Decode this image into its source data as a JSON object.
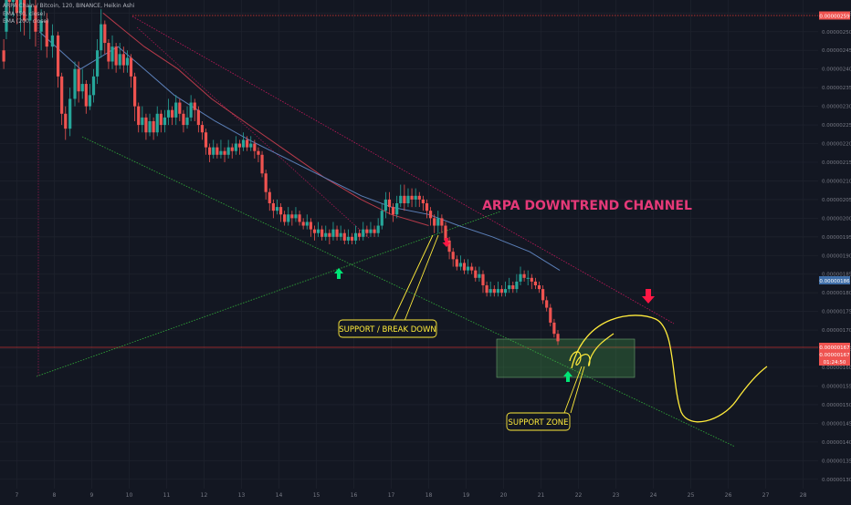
{
  "legend": {
    "symbol": "ARPA Chain / Bitcoin, 120, BINANCE, Heikin Ashi",
    "ema50": "EMA (50, close)",
    "ema200": "EMA (200, close)"
  },
  "colors": {
    "background": "#131722",
    "bull": "#26a69a",
    "bear": "#ef5350",
    "ema50": "#5b7fb8",
    "ema200": "#b73a4a",
    "channel_upper": "#c2185b",
    "support_green": "#2e9e37",
    "projection": "#ffeb3b",
    "title_text": "#e53978",
    "arrow_green": "#00e676",
    "arrow_red": "#ff1744",
    "price_tag": "#ef5350",
    "ema_tag": "#3f6ea8",
    "axis_text": "#787b86"
  },
  "chart_data": {
    "type": "candlestick",
    "style": "Heikin Ashi",
    "symbol": "ARPA Chain / Bitcoin",
    "interval": "120",
    "exchange": "BINANCE",
    "x_ticks": [
      "7",
      "8",
      "9",
      "10",
      "11",
      "12",
      "13",
      "14",
      "15",
      "16",
      "17",
      "18",
      "19",
      "20",
      "21",
      "22",
      "23",
      "24",
      "25",
      "26",
      "27",
      "28"
    ],
    "y_ticks": [
      "0.00000130",
      "0.00000135",
      "0.00000140",
      "0.00000145",
      "0.00000150",
      "0.00000155",
      "0.00000160",
      "0.00000165",
      "0.00000170",
      "0.00000175",
      "0.00000180",
      "0.00000185",
      "0.00000190",
      "0.00000195",
      "0.00000200",
      "0.00000205",
      "0.00000210",
      "0.00000215",
      "0.00000220",
      "0.00000225",
      "0.00000230",
      "0.00000235",
      "0.00000240",
      "0.00000245",
      "0.00000250",
      "0.00000255"
    ],
    "ylim": [
      1.275e-06,
      2.585e-06
    ],
    "xlim": [
      6.55,
      28.4
    ],
    "price_labels": {
      "high_line": "0.00000259",
      "current_1": "0.00000167",
      "current_2": "0.00000167",
      "countdown": "01:24:50",
      "ema": "0.00000186"
    },
    "levels": {
      "high": 2.59e-06,
      "current": 1.67e-06
    },
    "candles": [
      [
        6.65,
        2.45e-06,
        2.42e-06,
        2.48e-06,
        2.4e-06
      ],
      [
        6.72,
        2.5e-06,
        2.62e-06,
        2.65e-06,
        2.48e-06
      ],
      [
        6.8,
        2.62e-06,
        2.58e-06,
        2.66e-06,
        2.55e-06
      ],
      [
        6.9,
        2.58e-06,
        2.62e-06,
        2.65e-06,
        2.54e-06
      ],
      [
        7.0,
        2.62e-06,
        2.55e-06,
        2.64e-06,
        2.52e-06
      ],
      [
        7.1,
        2.55e-06,
        2.6e-06,
        2.63e-06,
        2.5e-06
      ],
      [
        7.2,
        2.6e-06,
        2.53e-06,
        2.62e-06,
        2.49e-06
      ],
      [
        7.35,
        2.53e-06,
        2.57e-06,
        2.6e-06,
        2.48e-06
      ],
      [
        7.5,
        2.57e-06,
        2.5e-06,
        2.59e-06,
        2.46e-06
      ],
      [
        7.65,
        2.5e-06,
        2.53e-06,
        2.56e-06,
        2.45e-06
      ],
      [
        7.8,
        2.53e-06,
        2.46e-06,
        2.55e-06,
        2.43e-06
      ],
      [
        7.95,
        2.46e-06,
        2.49e-06,
        2.52e-06,
        2.43e-06
      ],
      [
        8.1,
        2.49e-06,
        2.38e-06,
        2.5e-06,
        2.35e-06
      ],
      [
        8.2,
        2.38e-06,
        2.28e-06,
        2.39e-06,
        2.25e-06
      ],
      [
        8.3,
        2.28e-06,
        2.24e-06,
        2.3e-06,
        2.21e-06
      ],
      [
        8.42,
        2.24e-06,
        2.32e-06,
        2.35e-06,
        2.22e-06
      ],
      [
        8.55,
        2.32e-06,
        2.4e-06,
        2.42e-06,
        2.3e-06
      ],
      [
        8.65,
        2.4e-06,
        2.34e-06,
        2.42e-06,
        2.31e-06
      ],
      [
        8.75,
        2.34e-06,
        2.36e-06,
        2.4e-06,
        2.32e-06
      ],
      [
        8.85,
        2.36e-06,
        2.3e-06,
        2.37e-06,
        2.28e-06
      ],
      [
        8.95,
        2.3e-06,
        2.33e-06,
        2.36e-06,
        2.29e-06
      ],
      [
        9.05,
        2.33e-06,
        2.38e-06,
        2.4e-06,
        2.31e-06
      ],
      [
        9.15,
        2.38e-06,
        2.45e-06,
        2.48e-06,
        2.36e-06
      ],
      [
        9.25,
        2.45e-06,
        2.52e-06,
        2.56e-06,
        2.43e-06
      ],
      [
        9.35,
        2.52e-06,
        2.47e-06,
        2.53e-06,
        2.44e-06
      ],
      [
        9.45,
        2.47e-06,
        2.42e-06,
        2.48e-06,
        2.4e-06
      ],
      [
        9.55,
        2.42e-06,
        2.46e-06,
        2.49e-06,
        2.4e-06
      ],
      [
        9.65,
        2.46e-06,
        2.41e-06,
        2.47e-06,
        2.39e-06
      ],
      [
        9.75,
        2.41e-06,
        2.44e-06,
        2.47e-06,
        2.4e-06
      ],
      [
        9.85,
        2.44e-06,
        2.41e-06,
        2.46e-06,
        2.39e-06
      ],
      [
        9.95,
        2.41e-06,
        2.43e-06,
        2.45e-06,
        2.39e-06
      ],
      [
        10.05,
        2.43e-06,
        2.38e-06,
        2.44e-06,
        2.35e-06
      ],
      [
        10.15,
        2.38e-06,
        2.3e-06,
        2.39e-06,
        2.26e-06
      ],
      [
        10.25,
        2.3e-06,
        2.25e-06,
        2.31e-06,
        2.23e-06
      ],
      [
        10.35,
        2.25e-06,
        2.27e-06,
        2.3e-06,
        2.23e-06
      ],
      [
        10.45,
        2.27e-06,
        2.23e-06,
        2.28e-06,
        2.21e-06
      ],
      [
        10.55,
        2.23e-06,
        2.26e-06,
        2.28e-06,
        2.22e-06
      ],
      [
        10.65,
        2.26e-06,
        2.23e-06,
        2.27e-06,
        2.21e-06
      ],
      [
        10.75,
        2.23e-06,
        2.28e-06,
        2.3e-06,
        2.22e-06
      ],
      [
        10.85,
        2.28e-06,
        2.25e-06,
        2.29e-06,
        2.23e-06
      ],
      [
        10.95,
        2.25e-06,
        2.27e-06,
        2.29e-06,
        2.23e-06
      ],
      [
        11.05,
        2.27e-06,
        2.29e-06,
        2.32e-06,
        2.25e-06
      ],
      [
        11.15,
        2.29e-06,
        2.27e-06,
        2.3e-06,
        2.25e-06
      ],
      [
        11.25,
        2.27e-06,
        2.31e-06,
        2.33e-06,
        2.25e-06
      ],
      [
        11.35,
        2.31e-06,
        2.28e-06,
        2.32e-06,
        2.26e-06
      ],
      [
        11.45,
        2.28e-06,
        2.25e-06,
        2.29e-06,
        2.23e-06
      ],
      [
        11.55,
        2.25e-06,
        2.27e-06,
        2.3e-06,
        2.24e-06
      ],
      [
        11.65,
        2.27e-06,
        2.31e-06,
        2.33e-06,
        2.26e-06
      ],
      [
        11.75,
        2.31e-06,
        2.29e-06,
        2.32e-06,
        2.26e-06
      ],
      [
        11.85,
        2.29e-06,
        2.25e-06,
        2.3e-06,
        2.23e-06
      ],
      [
        11.95,
        2.25e-06,
        2.23e-06,
        2.26e-06,
        2.21e-06
      ],
      [
        12.05,
        2.23e-06,
        2.19e-06,
        2.24e-06,
        2.17e-06
      ],
      [
        12.15,
        2.19e-06,
        2.17e-06,
        2.2e-06,
        2.15e-06
      ],
      [
        12.25,
        2.17e-06,
        2.19e-06,
        2.21e-06,
        2.16e-06
      ],
      [
        12.35,
        2.19e-06,
        2.17e-06,
        2.2e-06,
        2.16e-06
      ],
      [
        12.45,
        2.17e-06,
        2.18e-06,
        2.21e-06,
        2.16e-06
      ],
      [
        12.55,
        2.18e-06,
        2.17e-06,
        2.19e-06,
        2.15e-06
      ],
      [
        12.65,
        2.17e-06,
        2.19e-06,
        2.21e-06,
        2.16e-06
      ],
      [
        12.75,
        2.19e-06,
        2.18e-06,
        2.2e-06,
        2.16e-06
      ],
      [
        12.85,
        2.18e-06,
        2.2e-06,
        2.22e-06,
        2.17e-06
      ],
      [
        12.95,
        2.2e-06,
        2.19e-06,
        2.21e-06,
        2.17e-06
      ],
      [
        13.05,
        2.19e-06,
        2.21e-06,
        2.23e-06,
        2.18e-06
      ],
      [
        13.15,
        2.21e-06,
        2.19e-06,
        2.22e-06,
        2.18e-06
      ],
      [
        13.25,
        2.19e-06,
        2.2e-06,
        2.22e-06,
        2.18e-06
      ],
      [
        13.35,
        2.2e-06,
        2.18e-06,
        2.21e-06,
        2.16e-06
      ],
      [
        13.45,
        2.18e-06,
        2.17e-06,
        2.19e-06,
        2.15e-06
      ],
      [
        13.55,
        2.17e-06,
        2.12e-06,
        2.18e-06,
        2.11e-06
      ],
      [
        13.65,
        2.12e-06,
        2.07e-06,
        2.13e-06,
        2.05e-06
      ],
      [
        13.75,
        2.07e-06,
        2.04e-06,
        2.08e-06,
        2.02e-06
      ],
      [
        13.85,
        2.04e-06,
        2.02e-06,
        2.05e-06,
        2e-06
      ],
      [
        13.95,
        2.02e-06,
        2.03e-06,
        2.05e-06,
        2.01e-06
      ],
      [
        14.05,
        2.03e-06,
        2.01e-06,
        2.04e-06,
        1.99e-06
      ],
      [
        14.15,
        2.01e-06,
        1.99e-06,
        2.02e-06,
        1.98e-06
      ],
      [
        14.25,
        1.99e-06,
        2.01e-06,
        2.03e-06,
        1.98e-06
      ],
      [
        14.35,
        2.01e-06,
        2e-06,
        2.02e-06,
        1.98e-06
      ],
      [
        14.45,
        2e-06,
        2.01e-06,
        2.03e-06,
        1.99e-06
      ],
      [
        14.55,
        2.01e-06,
        1.99e-06,
        2.02e-06,
        1.98e-06
      ],
      [
        14.65,
        1.99e-06,
        1.98e-06,
        2e-06,
        1.97e-06
      ],
      [
        14.75,
        1.98e-06,
        1.99e-06,
        2.01e-06,
        1.97e-06
      ],
      [
        14.85,
        1.99e-06,
        1.97e-06,
        2e-06,
        1.95e-06
      ],
      [
        14.95,
        1.97e-06,
        1.96e-06,
        1.98e-06,
        1.94e-06
      ],
      [
        15.05,
        1.96e-06,
        1.97e-06,
        1.99e-06,
        1.95e-06
      ],
      [
        15.15,
        1.97e-06,
        1.95e-06,
        1.98e-06,
        1.94e-06
      ],
      [
        15.25,
        1.95e-06,
        1.96e-06,
        1.98e-06,
        1.94e-06
      ],
      [
        15.35,
        1.96e-06,
        1.95e-06,
        1.97e-06,
        1.93e-06
      ],
      [
        15.45,
        1.95e-06,
        1.97e-06,
        1.99e-06,
        1.94e-06
      ],
      [
        15.55,
        1.97e-06,
        1.95e-06,
        1.98e-06,
        1.94e-06
      ],
      [
        15.65,
        1.95e-06,
        1.96e-06,
        1.98e-06,
        1.94e-06
      ],
      [
        15.75,
        1.96e-06,
        1.94e-06,
        1.97e-06,
        1.93e-06
      ],
      [
        15.85,
        1.94e-06,
        1.95e-06,
        1.97e-06,
        1.93e-06
      ],
      [
        15.95,
        1.95e-06,
        1.94e-06,
        1.96e-06,
        1.93e-06
      ],
      [
        16.05,
        1.94e-06,
        1.96e-06,
        1.98e-06,
        1.93e-06
      ],
      [
        16.15,
        1.96e-06,
        1.95e-06,
        1.97e-06,
        1.94e-06
      ],
      [
        16.25,
        1.95e-06,
        1.97e-06,
        1.99e-06,
        1.94e-06
      ],
      [
        16.35,
        1.97e-06,
        1.96e-06,
        1.98e-06,
        1.95e-06
      ],
      [
        16.45,
        1.96e-06,
        1.97e-06,
        1.99e-06,
        1.95e-06
      ],
      [
        16.55,
        1.97e-06,
        1.96e-06,
        1.98e-06,
        1.95e-06
      ],
      [
        16.65,
        1.96e-06,
        1.98e-06,
        2e-06,
        1.95e-06
      ],
      [
        16.75,
        1.98e-06,
        2.02e-06,
        2.04e-06,
        1.97e-06
      ],
      [
        16.85,
        2.02e-06,
        2.05e-06,
        2.07e-06,
        2e-06
      ],
      [
        16.95,
        2.05e-06,
        2.03e-06,
        2.07e-06,
        2.01e-06
      ],
      [
        17.05,
        2.03e-06,
        2.01e-06,
        2.04e-06,
        1.99e-06
      ],
      [
        17.15,
        2.01e-06,
        2.04e-06,
        2.06e-06,
        2e-06
      ],
      [
        17.25,
        2.04e-06,
        2.06e-06,
        2.09e-06,
        2.03e-06
      ],
      [
        17.35,
        2.06e-06,
        2.04e-06,
        2.09e-06,
        2.02e-06
      ],
      [
        17.45,
        2.04e-06,
        2.06e-06,
        2.08e-06,
        2.03e-06
      ],
      [
        17.55,
        2.06e-06,
        2.05e-06,
        2.08e-06,
        2.03e-06
      ],
      [
        17.65,
        2.05e-06,
        2.06e-06,
        2.08e-06,
        2.03e-06
      ],
      [
        17.75,
        2.06e-06,
        2.05e-06,
        2.07e-06,
        2.03e-06
      ],
      [
        17.85,
        2.05e-06,
        2.04e-06,
        2.06e-06,
        2.02e-06
      ],
      [
        17.95,
        2.04e-06,
        2.02e-06,
        2.05e-06,
        2e-06
      ],
      [
        18.05,
        2.02e-06,
        2e-06,
        2.03e-06,
        1.98e-06
      ],
      [
        18.15,
        2e-06,
        1.98e-06,
        2.01e-06,
        1.96e-06
      ],
      [
        18.25,
        1.98e-06,
        2e-06,
        2.02e-06,
        1.96e-06
      ],
      [
        18.35,
        2e-06,
        1.98e-06,
        2.01e-06,
        1.96e-06
      ],
      [
        18.45,
        1.98e-06,
        1.94e-06,
        1.99e-06,
        1.93e-06
      ],
      [
        18.55,
        1.94e-06,
        1.91e-06,
        1.95e-06,
        1.89e-06
      ],
      [
        18.65,
        1.91e-06,
        1.89e-06,
        1.92e-06,
        1.87e-06
      ],
      [
        18.75,
        1.89e-06,
        1.87e-06,
        1.9e-06,
        1.86e-06
      ],
      [
        18.85,
        1.87e-06,
        1.88e-06,
        1.9e-06,
        1.86e-06
      ],
      [
        18.95,
        1.88e-06,
        1.86e-06,
        1.89e-06,
        1.85e-06
      ],
      [
        19.05,
        1.86e-06,
        1.87e-06,
        1.89e-06,
        1.85e-06
      ],
      [
        19.15,
        1.87e-06,
        1.86e-06,
        1.88e-06,
        1.85e-06
      ],
      [
        19.25,
        1.86e-06,
        1.84e-06,
        1.87e-06,
        1.83e-06
      ],
      [
        19.35,
        1.84e-06,
        1.85e-06,
        1.87e-06,
        1.83e-06
      ],
      [
        19.45,
        1.85e-06,
        1.82e-06,
        1.86e-06,
        1.8e-06
      ],
      [
        19.55,
        1.82e-06,
        1.8e-06,
        1.83e-06,
        1.79e-06
      ],
      [
        19.65,
        1.8e-06,
        1.81e-06,
        1.83e-06,
        1.79e-06
      ],
      [
        19.75,
        1.81e-06,
        1.8e-06,
        1.82e-06,
        1.79e-06
      ],
      [
        19.85,
        1.8e-06,
        1.81e-06,
        1.83e-06,
        1.79e-06
      ],
      [
        19.95,
        1.81e-06,
        1.8e-06,
        1.82e-06,
        1.79e-06
      ],
      [
        20.05,
        1.8e-06,
        1.81e-06,
        1.83e-06,
        1.79e-06
      ],
      [
        20.15,
        1.81e-06,
        1.82e-06,
        1.84e-06,
        1.8e-06
      ],
      [
        20.25,
        1.82e-06,
        1.81e-06,
        1.83e-06,
        1.8e-06
      ],
      [
        20.35,
        1.81e-06,
        1.83e-06,
        1.85e-06,
        1.8e-06
      ],
      [
        20.45,
        1.83e-06,
        1.85e-06,
        1.87e-06,
        1.82e-06
      ],
      [
        20.55,
        1.85e-06,
        1.84e-06,
        1.86e-06,
        1.83e-06
      ],
      [
        20.65,
        1.84e-06,
        1.84e-06,
        1.86e-06,
        1.82e-06
      ],
      [
        20.75,
        1.84e-06,
        1.83e-06,
        1.85e-06,
        1.81e-06
      ],
      [
        20.85,
        1.83e-06,
        1.82e-06,
        1.84e-06,
        1.81e-06
      ],
      [
        20.95,
        1.82e-06,
        1.81e-06,
        1.83e-06,
        1.8e-06
      ],
      [
        21.05,
        1.81e-06,
        1.78e-06,
        1.82e-06,
        1.77e-06
      ],
      [
        21.15,
        1.78e-06,
        1.76e-06,
        1.79e-06,
        1.75e-06
      ],
      [
        21.25,
        1.76e-06,
        1.72e-06,
        1.77e-06,
        1.71e-06
      ],
      [
        21.35,
        1.72e-06,
        1.69e-06,
        1.73e-06,
        1.68e-06
      ],
      [
        21.45,
        1.69e-06,
        1.67e-06,
        1.7e-06,
        1.66e-06
      ]
    ],
    "ema50": [
      [
        7.6,
        2.5e-06
      ],
      [
        8.7,
        2.4e-06
      ],
      [
        9.7,
        2.46e-06
      ],
      [
        10.4,
        2.4e-06
      ],
      [
        11.2,
        2.33e-06
      ],
      [
        12.3,
        2.26e-06
      ],
      [
        13.2,
        2.21e-06
      ],
      [
        14.0,
        2.17e-06
      ],
      [
        15.2,
        2.11e-06
      ],
      [
        16.2,
        2.06e-06
      ],
      [
        17.0,
        2.03e-06
      ],
      [
        18.0,
        2.01e-06
      ],
      [
        18.8,
        1.98e-06
      ],
      [
        19.7,
        1.95e-06
      ],
      [
        20.7,
        1.91e-06
      ],
      [
        21.5,
        1.86e-06
      ]
    ],
    "ema200": [
      [
        9.3,
        2.55e-06
      ],
      [
        10.4,
        2.46e-06
      ],
      [
        11.3,
        2.4e-06
      ],
      [
        12.2,
        2.32e-06
      ],
      [
        13.2,
        2.25e-06
      ],
      [
        14.2,
        2.18e-06
      ],
      [
        15.2,
        2.11e-06
      ],
      [
        16.2,
        2.05e-06
      ],
      [
        17.0,
        2.01e-06
      ],
      [
        18.0,
        1.98e-06
      ]
    ],
    "annotations": {
      "title": "ARPA DOWNTREND CHANNEL",
      "support_break_label": "SUPPORT / BREAK DOWN",
      "support_zone_label": "SUPPORT ZONE"
    }
  }
}
